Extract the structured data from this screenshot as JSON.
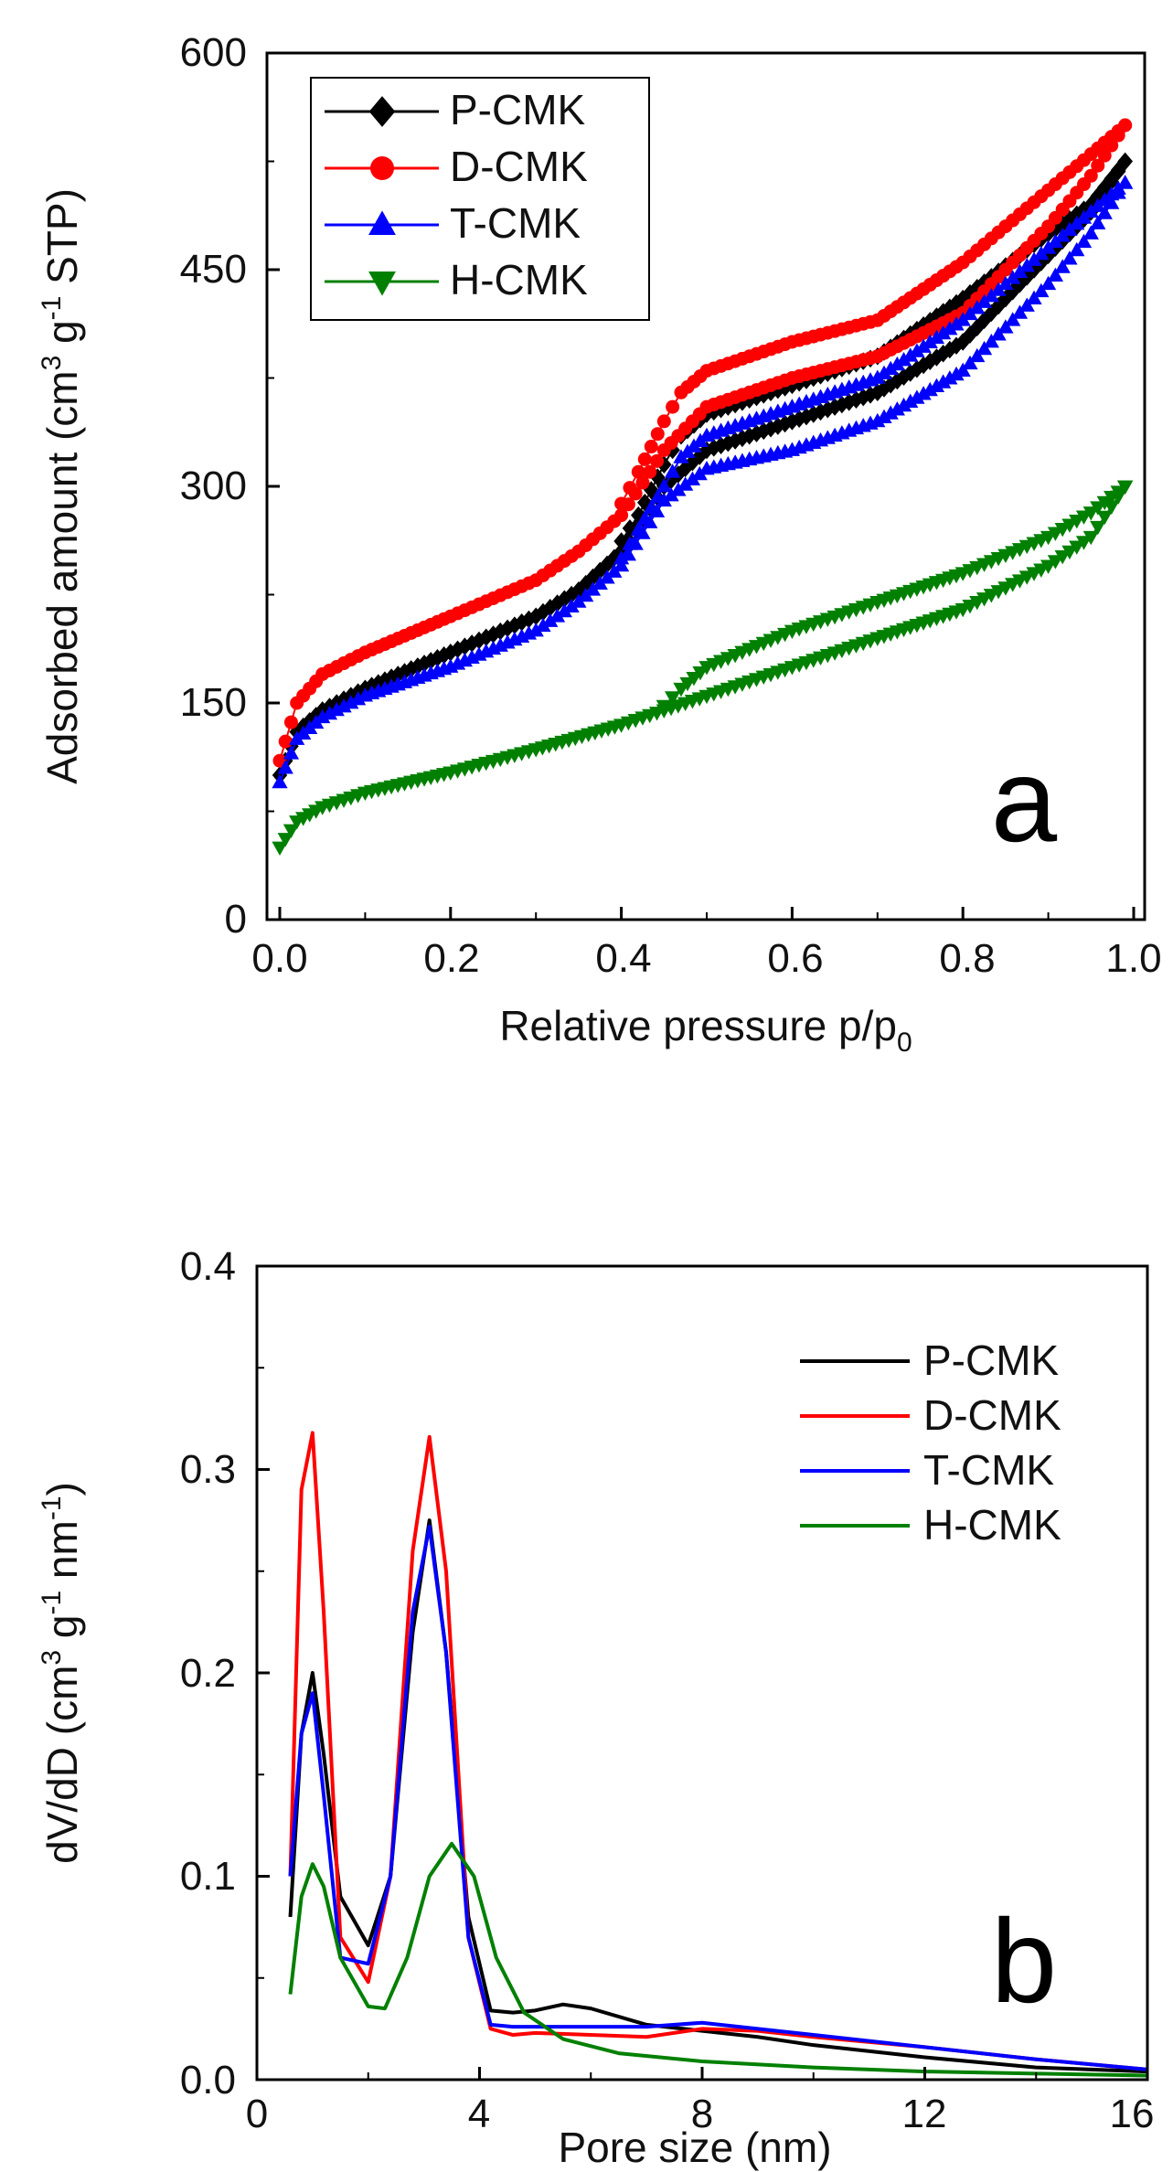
{
  "chart_data": [
    {
      "panel": "a",
      "type": "scatter",
      "xlabel": "Relative pressure p/p",
      "xlabel_sub": "0",
      "ylabel": "Adsorbed amount (cm",
      "ylabel_parts": [
        "Adsorbed amount (cm",
        "3",
        " g",
        "-1",
        " STP)"
      ],
      "xlim": [
        0.0,
        1.0
      ],
      "ylim": [
        0,
        600
      ],
      "xticks": [
        "0.0",
        "0.2",
        "0.4",
        "0.6",
        "0.8",
        "1.0"
      ],
      "xtick_values": [
        0.0,
        0.2,
        0.4,
        0.6,
        0.8,
        1.0
      ],
      "yticks": [
        "0",
        "150",
        "300",
        "450",
        "600"
      ],
      "ytick_values": [
        0,
        150,
        300,
        450,
        600
      ],
      "legend_position": "top-left",
      "series": [
        {
          "name": "P-CMK",
          "color": "#000000",
          "marker": "diamond",
          "adsorption": {
            "x": [
              0.0,
              0.02,
              0.05,
              0.1,
              0.2,
              0.3,
              0.35,
              0.4,
              0.45,
              0.5,
              0.6,
              0.7,
              0.8,
              0.9,
              0.95,
              0.99
            ],
            "y": [
              100,
              130,
              145,
              160,
              185,
              210,
              228,
              255,
              300,
              325,
              345,
              365,
              400,
              460,
              490,
              525
            ]
          },
          "desorption": {
            "x": [
              0.99,
              0.95,
              0.9,
              0.8,
              0.7,
              0.6,
              0.5,
              0.47,
              0.45,
              0.42,
              0.4
            ],
            "y": [
              525,
              495,
              475,
              430,
              390,
              370,
              350,
              335,
              315,
              280,
              262
            ]
          }
        },
        {
          "name": "D-CMK",
          "color": "#ff0000",
          "marker": "circle",
          "adsorption": {
            "x": [
              0.0,
              0.02,
              0.05,
              0.1,
              0.2,
              0.3,
              0.35,
              0.4,
              0.45,
              0.5,
              0.6,
              0.7,
              0.8,
              0.9,
              0.95,
              0.99
            ],
            "y": [
              110,
              150,
              170,
              185,
              210,
              235,
              255,
              280,
              325,
              355,
              375,
              390,
              420,
              480,
              515,
              550
            ]
          },
          "desorption": {
            "x": [
              0.99,
              0.95,
              0.9,
              0.8,
              0.7,
              0.6,
              0.5,
              0.47,
              0.45,
              0.42,
              0.4
            ],
            "y": [
              550,
              530,
              505,
              455,
              415,
              400,
              380,
              365,
              345,
              310,
              288
            ]
          }
        },
        {
          "name": "T-CMK",
          "color": "#0000ff",
          "marker": "triangle-up",
          "adsorption": {
            "x": [
              0.0,
              0.02,
              0.05,
              0.1,
              0.2,
              0.3,
              0.35,
              0.4,
              0.45,
              0.5,
              0.6,
              0.7,
              0.8,
              0.9,
              0.95,
              0.99
            ],
            "y": [
              95,
              125,
              140,
              155,
              175,
              200,
              220,
              245,
              290,
              312,
              325,
              345,
              380,
              440,
              475,
              510
            ]
          },
          "desorption": {
            "x": [
              0.99,
              0.95,
              0.9,
              0.8,
              0.7,
              0.6,
              0.5,
              0.47,
              0.45,
              0.42,
              0.4
            ],
            "y": [
              510,
              490,
              465,
              415,
              375,
              355,
              335,
              320,
              300,
              270,
              250
            ]
          }
        },
        {
          "name": "H-CMK",
          "color": "#008000",
          "marker": "triangle-down",
          "adsorption": {
            "x": [
              0.0,
              0.02,
              0.05,
              0.1,
              0.2,
              0.3,
              0.4,
              0.45,
              0.5,
              0.6,
              0.7,
              0.8,
              0.9,
              0.95,
              0.99
            ],
            "y": [
              50,
              68,
              78,
              88,
              102,
              118,
              135,
              145,
              155,
              175,
              195,
              215,
              245,
              265,
              300
            ]
          },
          "desorption": {
            "x": [
              0.99,
              0.95,
              0.9,
              0.8,
              0.7,
              0.6,
              0.5,
              0.47,
              0.45
            ],
            "y": [
              300,
              282,
              265,
              240,
              220,
              200,
              175,
              160,
              148
            ]
          }
        }
      ],
      "annotation": "a"
    },
    {
      "panel": "b",
      "type": "line",
      "xlabel": "Pore size (nm)",
      "ylabel": "dV/dD (cm",
      "ylabel_parts": [
        "dV/dD (cm",
        "3",
        " g",
        "-1",
        " nm",
        "-1",
        ")"
      ],
      "xlim": [
        0,
        16
      ],
      "ylim": [
        0.0,
        0.4
      ],
      "xticks": [
        "0",
        "4",
        "8",
        "12",
        "16"
      ],
      "xtick_values": [
        0,
        4,
        8,
        12,
        16
      ],
      "yticks": [
        "0.0",
        "0.1",
        "0.2",
        "0.3",
        "0.4"
      ],
      "ytick_values": [
        0.0,
        0.1,
        0.2,
        0.3,
        0.4
      ],
      "legend_position": "top-right",
      "series": [
        {
          "name": "P-CMK",
          "color": "#000000",
          "x": [
            0.6,
            0.8,
            1.0,
            1.2,
            1.5,
            2.0,
            2.4,
            2.8,
            3.1,
            3.4,
            3.8,
            4.2,
            4.6,
            5.0,
            5.5,
            6.0,
            7.0,
            8.0,
            9.0,
            10.0,
            12.0,
            14.0,
            16.0
          ],
          "y": [
            0.08,
            0.17,
            0.2,
            0.16,
            0.09,
            0.066,
            0.1,
            0.22,
            0.275,
            0.21,
            0.08,
            0.034,
            0.033,
            0.034,
            0.037,
            0.035,
            0.027,
            0.024,
            0.021,
            0.017,
            0.011,
            0.006,
            0.004
          ]
        },
        {
          "name": "D-CMK",
          "color": "#ff0000",
          "x": [
            0.6,
            0.8,
            1.0,
            1.2,
            1.5,
            2.0,
            2.4,
            2.8,
            3.1,
            3.4,
            3.8,
            4.2,
            4.6,
            5.0,
            6.0,
            7.0,
            8.0,
            9.0,
            10.0,
            12.0,
            14.0,
            16.0
          ],
          "y": [
            0.1,
            0.29,
            0.318,
            0.23,
            0.07,
            0.048,
            0.1,
            0.26,
            0.316,
            0.25,
            0.07,
            0.025,
            0.022,
            0.023,
            0.022,
            0.021,
            0.025,
            0.024,
            0.021,
            0.016,
            0.01,
            0.005
          ]
        },
        {
          "name": "T-CMK",
          "color": "#0000ff",
          "x": [
            0.6,
            0.8,
            1.0,
            1.2,
            1.5,
            2.0,
            2.4,
            2.8,
            3.1,
            3.4,
            3.8,
            4.2,
            4.6,
            5.0,
            6.0,
            7.0,
            8.0,
            9.0,
            10.0,
            12.0,
            14.0,
            16.0
          ],
          "y": [
            0.1,
            0.17,
            0.19,
            0.14,
            0.06,
            0.057,
            0.1,
            0.23,
            0.272,
            0.21,
            0.07,
            0.027,
            0.026,
            0.026,
            0.026,
            0.026,
            0.028,
            0.025,
            0.022,
            0.016,
            0.01,
            0.005
          ]
        },
        {
          "name": "H-CMK",
          "color": "#008000",
          "x": [
            0.6,
            0.8,
            1.0,
            1.2,
            1.5,
            2.0,
            2.3,
            2.7,
            3.1,
            3.5,
            3.9,
            4.3,
            4.8,
            5.5,
            6.5,
            8.0,
            10.0,
            12.0,
            14.0,
            16.0
          ],
          "y": [
            0.042,
            0.09,
            0.106,
            0.095,
            0.06,
            0.036,
            0.035,
            0.06,
            0.1,
            0.116,
            0.1,
            0.06,
            0.033,
            0.02,
            0.013,
            0.009,
            0.006,
            0.004,
            0.003,
            0.002
          ]
        }
      ],
      "annotation": "b"
    }
  ]
}
